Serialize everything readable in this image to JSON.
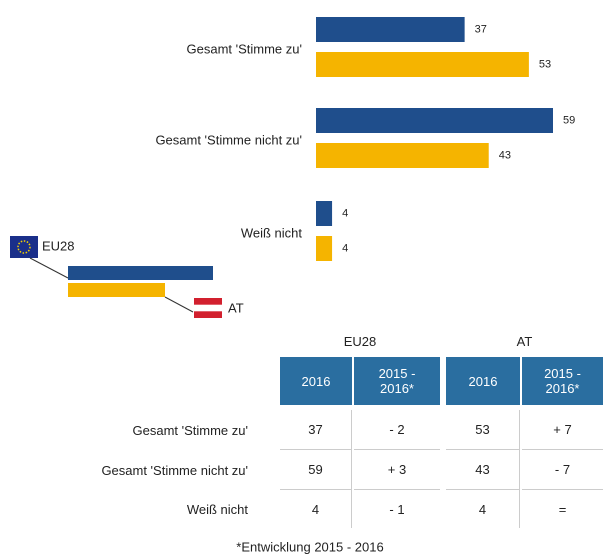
{
  "chart_data": {
    "type": "bar",
    "orientation": "horizontal",
    "categories": [
      "Gesamt 'Stimme zu'",
      "Gesamt 'Stimme nicht zu'",
      "Weiß nicht"
    ],
    "series": [
      {
        "name": "EU28",
        "color": "#1f4e8c",
        "values": [
          37,
          59,
          4
        ]
      },
      {
        "name": "AT",
        "color": "#f5b400",
        "values": [
          53,
          43,
          4
        ]
      }
    ]
  },
  "table": {
    "groups": [
      "EU28",
      "AT"
    ],
    "columns": [
      "2016",
      "2015 - 2016*",
      "2016",
      "2015 - 2016*"
    ],
    "rows": [
      [
        "Gesamt 'Stimme zu'",
        "37",
        "- 2",
        "53",
        "+ 7"
      ],
      [
        "Gesamt 'Stimme nicht zu'",
        "59",
        "+ 3",
        "43",
        "- 7"
      ],
      [
        "Weiß nicht",
        "4",
        "- 1",
        "4",
        "="
      ]
    ]
  },
  "footnote": "*Entwicklung 2015 - 2016"
}
